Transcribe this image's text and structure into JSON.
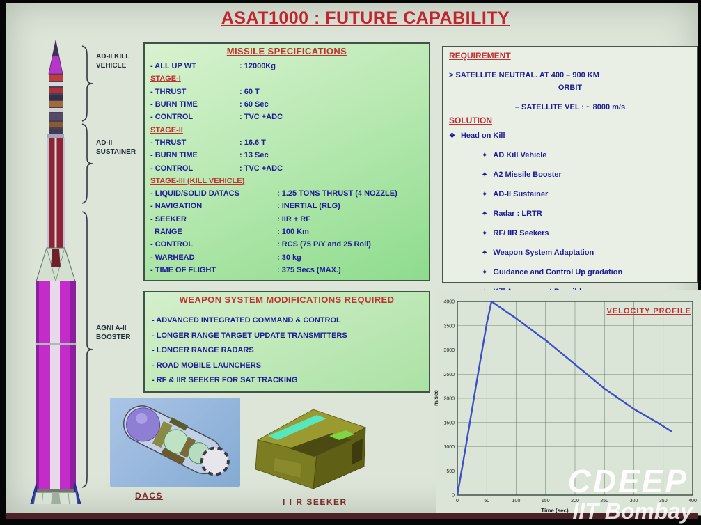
{
  "slide": {
    "title": "ASAT1000 : FUTURE CAPABILITY",
    "watermark_line1": "CDEEP",
    "watermark_line2": "IIT Bombay"
  },
  "rocket": {
    "label_kill_vehicle": "AD-II KILL VEHICLE",
    "label_sustainer": "AD-II SUSTAINER",
    "label_booster": "AGNI A-II BOOSTER"
  },
  "missile_specs": {
    "title": "MISSILE SPECIFICATIONS",
    "rows": [
      {
        "label": "- ALL UP WT",
        "value": ": 12000Kg"
      },
      {
        "label": "STAGE-I"
      },
      {
        "label": "- THRUST",
        "value": ": 60 T"
      },
      {
        "label": "- BURN TIME",
        "value": ": 60 Sec"
      },
      {
        "label": "- CONTROL",
        "value": ": TVC +ADC"
      },
      {
        "label": "STAGE-II"
      },
      {
        "label": "- THRUST",
        "value": ": 16.6 T"
      },
      {
        "label": "- BURN TIME",
        "value": ": 13 Sec"
      },
      {
        "label": "- CONTROL",
        "value": ": TVC +ADC"
      },
      {
        "label": "STAGE-III (KILL VEHICLE)"
      },
      {
        "label": "- LIQUID/SOLID DATACS",
        "value": ": 1.25 TONS THRUST (4 NOZZLE)"
      },
      {
        "label": "- NAVIGATION",
        "value": ": INERTIAL (RLG)"
      },
      {
        "label": "- SEEKER",
        "value": ": IIR + RF"
      },
      {
        "label": "RANGE",
        "value": ": 100 Km"
      },
      {
        "label": "- CONTROL",
        "value": ": RCS (75 P/Y and 25 Roll)"
      },
      {
        "label": "- WARHEAD",
        "value": ": 30 kg"
      },
      {
        "label": "- TIME OF FLIGHT",
        "value": ": 375 Secs  (MAX.)"
      }
    ]
  },
  "requirement": {
    "title": "REQUIREMENT",
    "line1": "> SATELLITE NEUTRAL. AT 400 – 900 KM",
    "line2": "ORBIT",
    "line3": "– SATELLITE VEL : ~ 8000 m/s"
  },
  "solution": {
    "title": "SOLUTION",
    "head_bullet": "❖",
    "head": "Head on Kill",
    "bullet": "✦",
    "items": [
      "AD Kill Vehicle",
      "A2 Missile Booster",
      "AD-II Sustainer",
      "Radar : LRTR",
      "RF/ IIR Seekers",
      "Weapon System Adaptation",
      "Guidance and Control Up gradation",
      "Kill Assessment Possible"
    ]
  },
  "weapon_mods": {
    "title": "WEAPON SYSTEM MODIFICATIONS REQUIRED",
    "items": [
      "- ADVANCED INTEGRATED COMMAND & CONTROL",
      "- LONGER RANGE TARGET UPDATE TRANSMITTERS",
      "- LONGER RANGE RADARS",
      "- ROAD MOBILE LAUNCHERS",
      "- RF & IIR SEEKER FOR SAT TRACKING"
    ]
  },
  "figures": {
    "dacs_label": "DACS",
    "seeker_label": "I I R SEEKER"
  },
  "chart_data": {
    "type": "line",
    "title": "VELOCITY PROFILE",
    "xlabel": "Time (sec)",
    "ylabel": "m/sec",
    "xlim": [
      0,
      400
    ],
    "ylim": [
      0,
      4000
    ],
    "xticks": [
      0,
      50,
      100,
      150,
      200,
      250,
      300,
      350,
      400
    ],
    "yticks": [
      0,
      500,
      1000,
      1500,
      2000,
      2500,
      3000,
      3500,
      4000
    ],
    "grid": true,
    "legend": "none",
    "line_color": "#3c4ec8",
    "series": [
      {
        "name": "velocity",
        "points": [
          [
            0,
            0
          ],
          [
            15,
            1050
          ],
          [
            35,
            2500
          ],
          [
            50,
            3550
          ],
          [
            58,
            4000
          ],
          [
            100,
            3650
          ],
          [
            150,
            3200
          ],
          [
            200,
            2700
          ],
          [
            250,
            2200
          ],
          [
            300,
            1780
          ],
          [
            340,
            1500
          ],
          [
            365,
            1310
          ]
        ]
      }
    ]
  },
  "colors": {
    "accent_red": "#c03030",
    "text_blue": "#1c1c96",
    "booster_magenta": "#c32cc8",
    "fin_blue": "#2c36b8",
    "chart_line": "#3c4ec8"
  }
}
